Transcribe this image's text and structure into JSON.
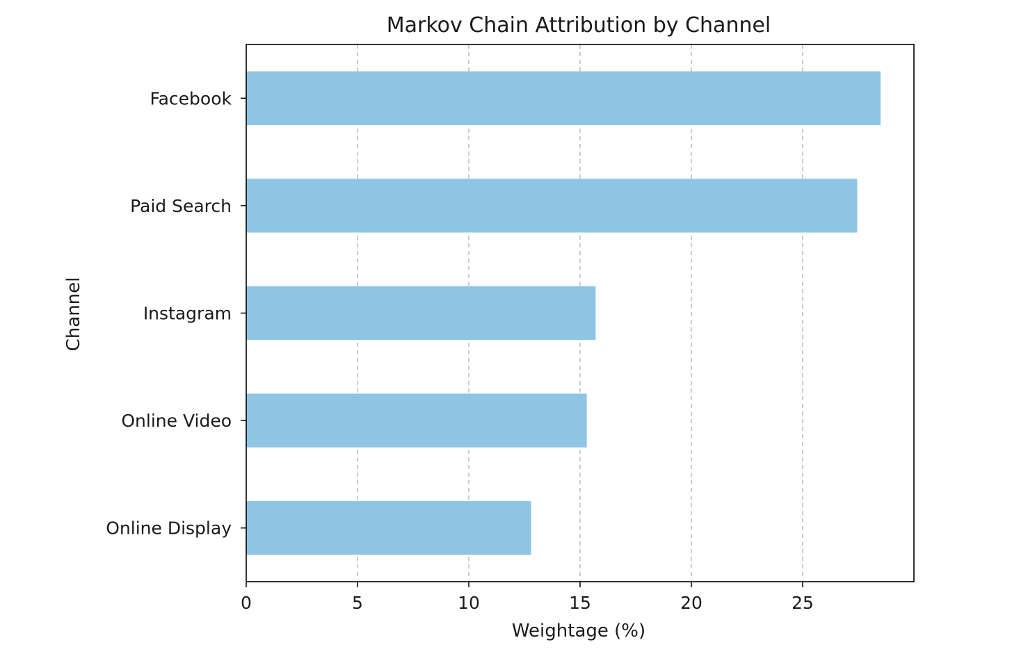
{
  "chart_data": {
    "type": "bar",
    "orientation": "horizontal",
    "title": "Markov Chain Attribution by Channel",
    "xlabel": "Weightage (%)",
    "ylabel": "Channel",
    "categories": [
      "Facebook",
      "Paid Search",
      "Instagram",
      "Online Video",
      "Online Display"
    ],
    "values": [
      28.5,
      27.45,
      15.7,
      15.3,
      12.8
    ],
    "xlim": [
      0,
      30
    ],
    "xticks": [
      "0",
      "5",
      "10",
      "15",
      "20",
      "25"
    ],
    "grid": "x-dashed",
    "legend": "none",
    "bar_color": "#8ec4e4"
  }
}
